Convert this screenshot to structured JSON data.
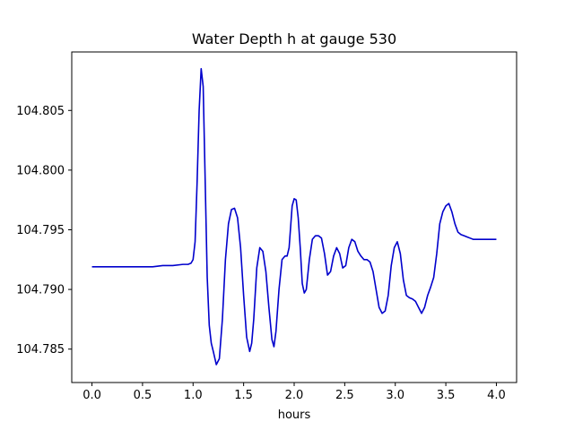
{
  "chart_data": {
    "type": "line",
    "title": "Water Depth h at gauge 530",
    "xlabel": "hours",
    "ylabel": "",
    "xlim": [
      -0.2,
      4.2
    ],
    "ylim": [
      104.7822,
      104.8099
    ],
    "xticks": [
      0.0,
      0.5,
      1.0,
      1.5,
      2.0,
      2.5,
      3.0,
      3.5,
      4.0
    ],
    "xtick_labels": [
      "0.0",
      "0.5",
      "1.0",
      "1.5",
      "2.0",
      "2.5",
      "3.0",
      "3.5",
      "4.0"
    ],
    "yticks": [
      104.785,
      104.79,
      104.795,
      104.8,
      104.805
    ],
    "ytick_labels": [
      "104.785",
      "104.790",
      "104.795",
      "104.800",
      "104.805"
    ],
    "grid": false,
    "line_color": "#0000cc",
    "series": [
      {
        "x": [
          0.0,
          0.2,
          0.4,
          0.6,
          0.7,
          0.8,
          0.9,
          0.95,
          0.98,
          1.0,
          1.02,
          1.04,
          1.06,
          1.08,
          1.1,
          1.12,
          1.14,
          1.16,
          1.18,
          1.2,
          1.23,
          1.26,
          1.29,
          1.32,
          1.35,
          1.38,
          1.41,
          1.44,
          1.47,
          1.5,
          1.53,
          1.56,
          1.58,
          1.6,
          1.63,
          1.66,
          1.69,
          1.72,
          1.75,
          1.78,
          1.8,
          1.82,
          1.85,
          1.88,
          1.91,
          1.93,
          1.95,
          1.98,
          2.0,
          2.02,
          2.04,
          2.06,
          2.08,
          2.1,
          2.12,
          2.15,
          2.18,
          2.21,
          2.24,
          2.27,
          2.3,
          2.33,
          2.36,
          2.39,
          2.42,
          2.45,
          2.48,
          2.51,
          2.54,
          2.57,
          2.6,
          2.63,
          2.66,
          2.69,
          2.72,
          2.75,
          2.78,
          2.81,
          2.84,
          2.87,
          2.9,
          2.93,
          2.96,
          2.99,
          3.02,
          3.05,
          3.08,
          3.11,
          3.14,
          3.17,
          3.2,
          3.23,
          3.26,
          3.29,
          3.32,
          3.35,
          3.38,
          3.41,
          3.44,
          3.47,
          3.5,
          3.53,
          3.56,
          3.59,
          3.62,
          3.65,
          3.68,
          3.71,
          3.74,
          3.77,
          3.8,
          3.83,
          3.86,
          3.89,
          3.92,
          3.95,
          3.98,
          4.0
        ],
        "y": [
          104.7919,
          104.7919,
          104.7919,
          104.7919,
          104.792,
          104.792,
          104.7921,
          104.7921,
          104.7922,
          104.7925,
          104.794,
          104.799,
          104.805,
          104.8085,
          104.807,
          104.799,
          104.791,
          104.787,
          104.7855,
          104.7848,
          104.7837,
          104.7842,
          104.7875,
          104.7925,
          104.7955,
          104.7967,
          104.7968,
          104.796,
          104.7935,
          104.7895,
          104.786,
          104.7848,
          104.7855,
          104.7875,
          104.7918,
          104.7935,
          104.7932,
          104.7915,
          104.7885,
          104.7858,
          104.7852,
          104.7865,
          104.79,
          104.7925,
          104.7928,
          104.7928,
          104.7935,
          104.797,
          104.7976,
          104.7975,
          104.796,
          104.7935,
          104.7905,
          104.7897,
          104.79,
          104.7925,
          104.7942,
          104.7945,
          104.7945,
          104.7943,
          104.793,
          104.7912,
          104.7915,
          104.7928,
          104.7935,
          104.793,
          104.7918,
          104.792,
          104.7935,
          104.7942,
          104.794,
          104.7932,
          104.7928,
          104.7925,
          104.7925,
          104.7923,
          104.7915,
          104.79,
          104.7885,
          104.788,
          104.7882,
          104.7895,
          104.792,
          104.7935,
          104.794,
          104.793,
          104.7908,
          104.7895,
          104.7893,
          104.7892,
          104.789,
          104.7885,
          104.788,
          104.7885,
          104.7895,
          104.7902,
          104.791,
          104.793,
          104.7955,
          104.7965,
          104.797,
          104.7972,
          104.7965,
          104.7955,
          104.7948,
          104.7946,
          104.7945,
          104.7944,
          104.7943,
          104.7942,
          104.7942,
          104.7942,
          104.7942,
          104.7942,
          104.7942,
          104.7942,
          104.7942,
          104.7942
        ]
      }
    ]
  }
}
